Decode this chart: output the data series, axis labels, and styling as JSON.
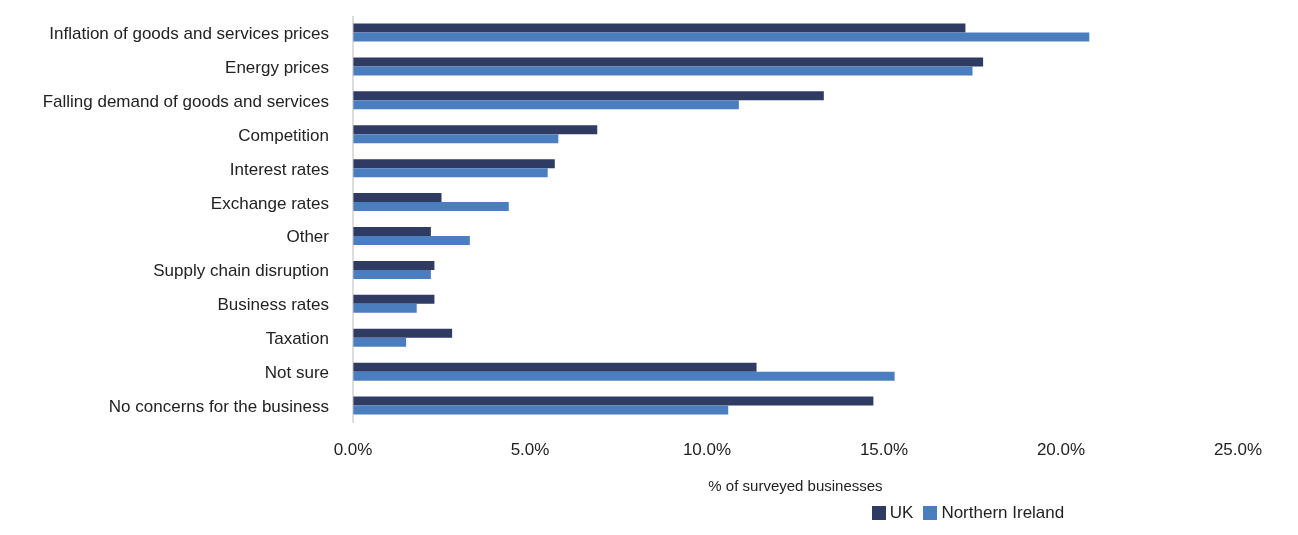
{
  "chart_data": {
    "type": "bar",
    "orientation": "horizontal",
    "xlabel": "% of surveyed businesses",
    "categories": [
      "Inflation of goods and services prices",
      "Energy prices",
      "Falling demand of goods and services",
      "Competition",
      "Interest rates",
      "Exchange rates",
      "Other",
      "Supply chain disruption",
      "Business rates",
      "Taxation",
      "Not sure",
      "No concerns for the business"
    ],
    "series": [
      {
        "name": "UK",
        "color": "#2f3b63",
        "values": [
          17.3,
          17.8,
          13.3,
          6.9,
          5.7,
          2.5,
          2.2,
          2.3,
          2.3,
          2.8,
          11.4,
          14.7
        ]
      },
      {
        "name": "Northern Ireland",
        "color": "#4a7ebf",
        "values": [
          20.8,
          17.5,
          10.9,
          5.8,
          5.5,
          4.4,
          3.3,
          2.2,
          1.8,
          1.5,
          15.3,
          10.6
        ]
      }
    ],
    "xlim": [
      0,
      25
    ],
    "xticks": [
      {
        "value": 0,
        "label": "0.0%"
      },
      {
        "value": 5,
        "label": "5.0%"
      },
      {
        "value": 10,
        "label": "10.0%"
      },
      {
        "value": 15,
        "label": "15.0%"
      },
      {
        "value": 20,
        "label": "20.0%"
      },
      {
        "value": 25,
        "label": "25.0%"
      }
    ],
    "grid": false,
    "legend": "bottom"
  }
}
